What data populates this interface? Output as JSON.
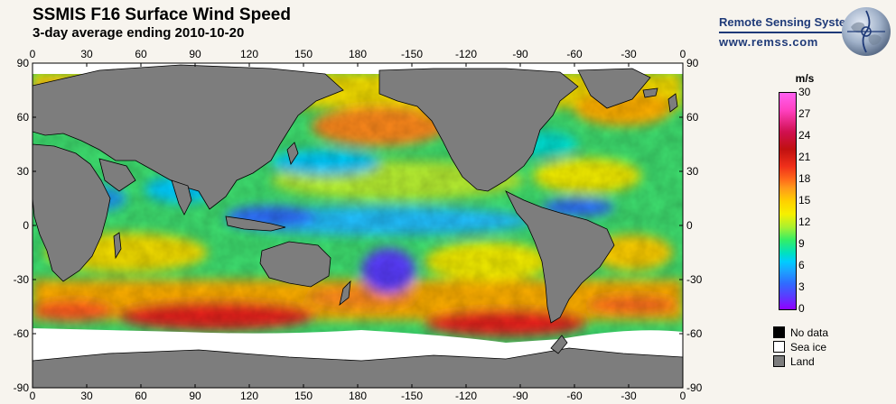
{
  "header": {
    "title": "SSMIS F16 Surface Wind Speed",
    "subtitle": "3-day average ending 2010-10-20"
  },
  "logo": {
    "name": "Remote Sensing Systems",
    "url": "www.remss.com"
  },
  "map": {
    "lon_labels": [
      "0",
      "30",
      "60",
      "90",
      "120",
      "150",
      "180",
      "-150",
      "-120",
      "-90",
      "-60",
      "-30",
      "0"
    ],
    "lat_labels": [
      "90",
      "60",
      "30",
      "0",
      "-30",
      "-60",
      "-90"
    ],
    "colors": {
      "land": "#7d7d7d",
      "sea_ice": "#ffffff",
      "no_data": "#000000",
      "ocean_base": "#3fe070"
    }
  },
  "colorbar": {
    "unit": "m/s",
    "ticks": [
      "30",
      "27",
      "24",
      "21",
      "18",
      "15",
      "12",
      "9",
      "6",
      "3",
      "0"
    ],
    "range": [
      0,
      30
    ]
  },
  "legend": {
    "items": [
      {
        "label": "No data",
        "color": "#000000"
      },
      {
        "label": "Sea ice",
        "color": "#ffffff"
      },
      {
        "label": "Land",
        "color": "#7d7d7d"
      }
    ]
  }
}
